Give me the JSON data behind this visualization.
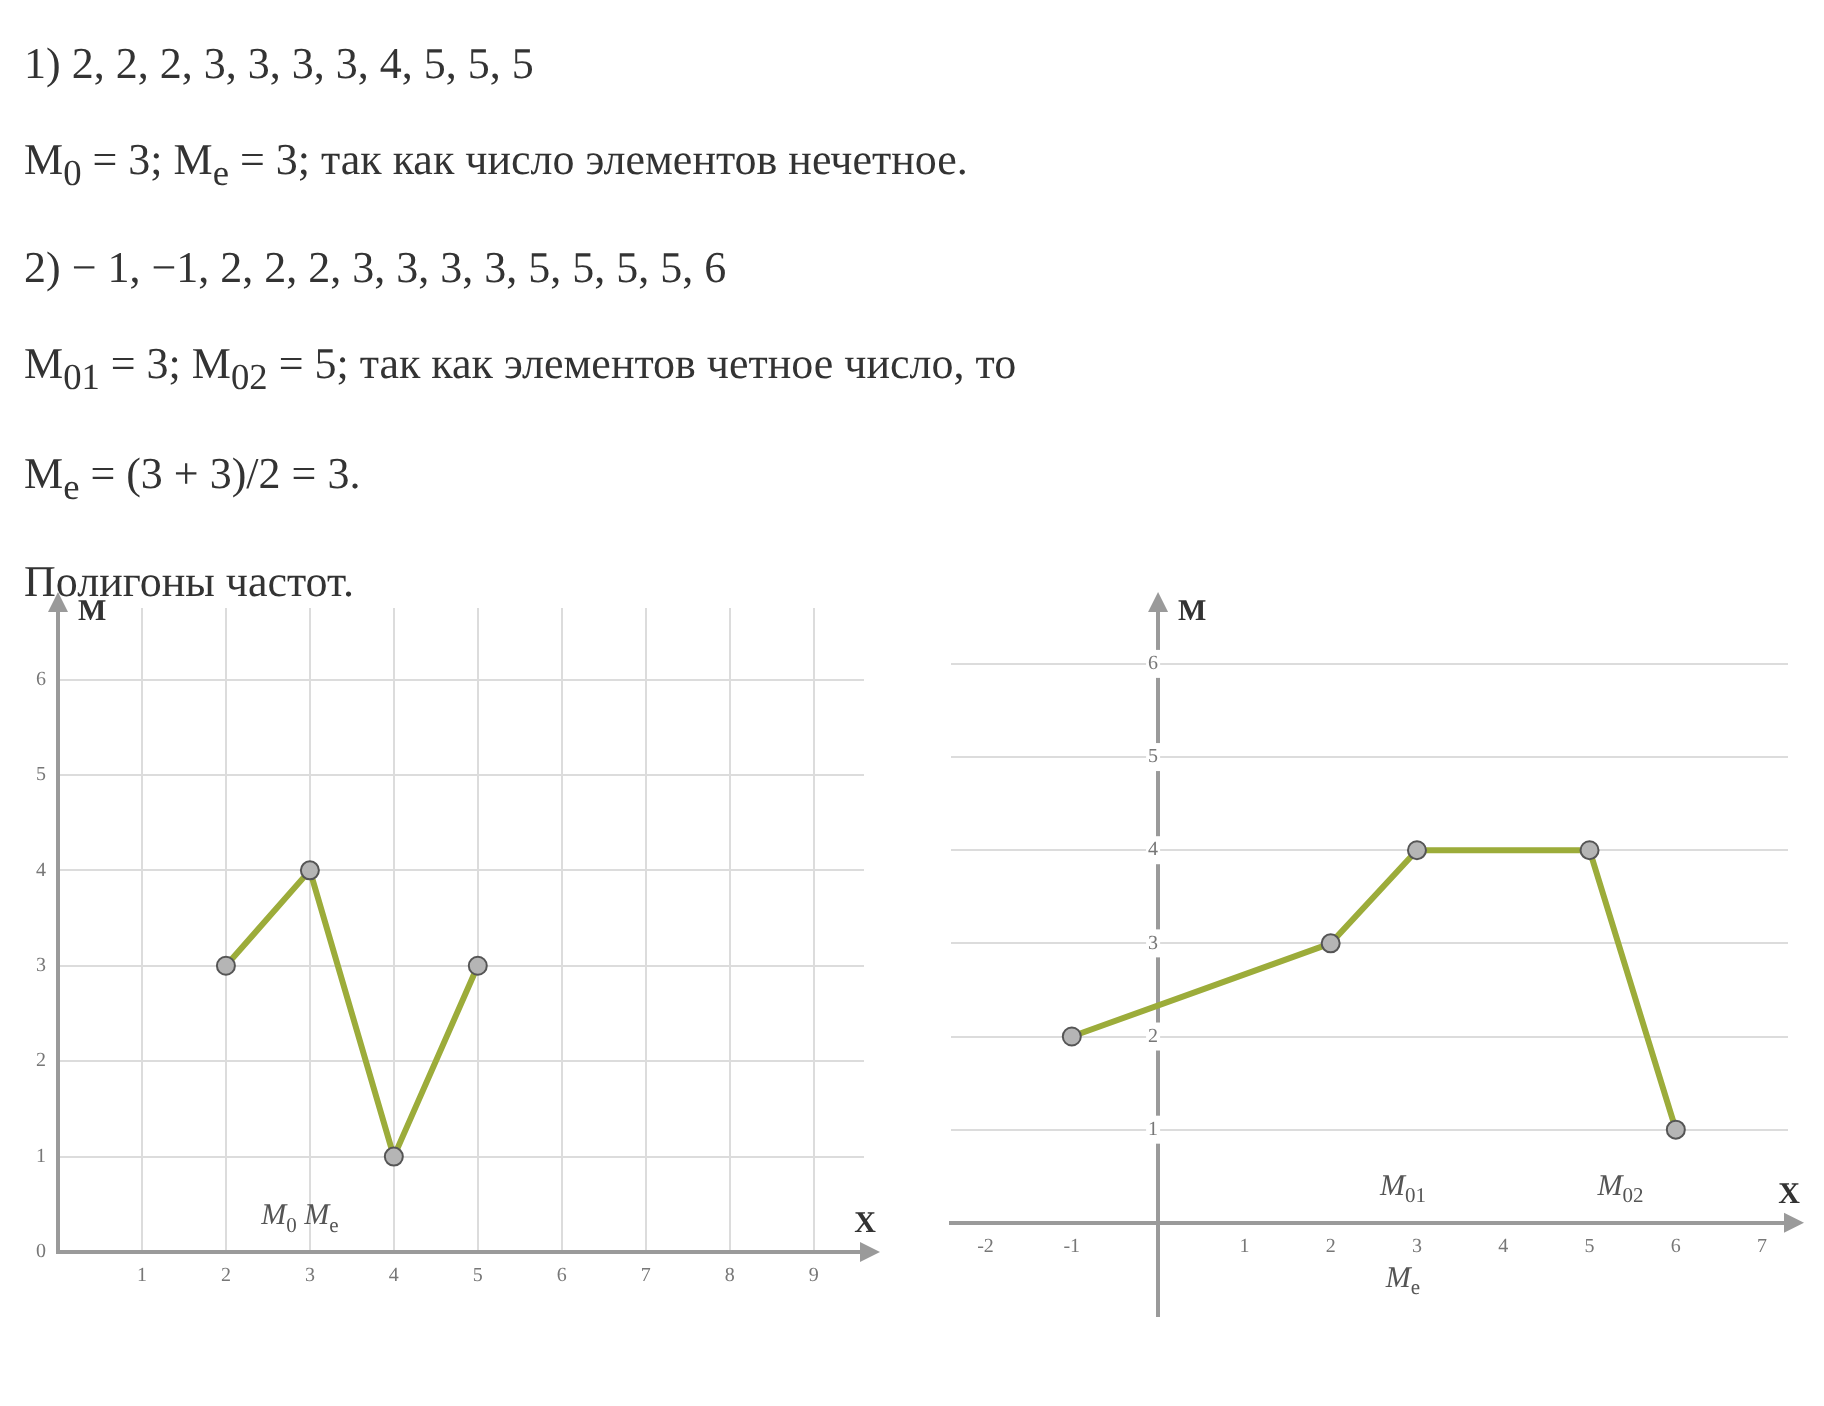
{
  "chart_data": [
    {
      "type": "line",
      "title": "Полигоны частот.",
      "annotations": [
        "1) 2, 2, 2, 3, 3, 3, 3, 4, 5, 5, 5",
        "M$_{0}$ = 3;  M$_{e}$ = 3;  так как число элементов нечетное.",
        "2) − 1, −1, 2, 2, 2, 3, 3, 3, 3, 5, 5, 5, 5, 6",
        "M$_{01}$ = 3;  M$_{02}$ = 5;  так как элементов четное число, то",
        "M$_{e}$ = (3 + 3)/2 = 3.",
        "M$_{0}$ M$_{e}$"
      ],
      "x": [
        2,
        3,
        4,
        5
      ],
      "series": [
        {
          "color": "#9cac3a",
          "values": [
            3,
            4,
            1,
            3
          ]
        }
      ],
      "xlabel": "X",
      "ylabel": "M",
      "xlim": [
        0,
        9.6
      ],
      "ylim": [
        0,
        6.75
      ],
      "xticks": [
        1,
        2,
        3,
        4,
        5,
        6,
        7,
        8,
        9
      ],
      "yticks": [
        0,
        1,
        2,
        3,
        4,
        5,
        6
      ],
      "grid": true,
      "marker": "circle"
    },
    {
      "type": "line",
      "annotations": [
        "M$_{01}$",
        "M$_{02}$",
        "M$_{e}$"
      ],
      "x": [
        -1,
        2,
        3,
        5,
        6
      ],
      "series": [
        {
          "color": "#9cac3a",
          "values": [
            2,
            3,
            4,
            4,
            1
          ]
        }
      ],
      "xlabel": "X",
      "ylabel": "M",
      "xlim": [
        -2.4,
        7.3
      ],
      "ylim": [
        -1,
        6.6
      ],
      "xticks": [
        -2,
        -1,
        1,
        2,
        3,
        4,
        5,
        6,
        7
      ],
      "yticks": [
        1,
        2,
        3,
        4,
        5,
        6
      ],
      "grid": "y",
      "marker": "circle"
    }
  ]
}
